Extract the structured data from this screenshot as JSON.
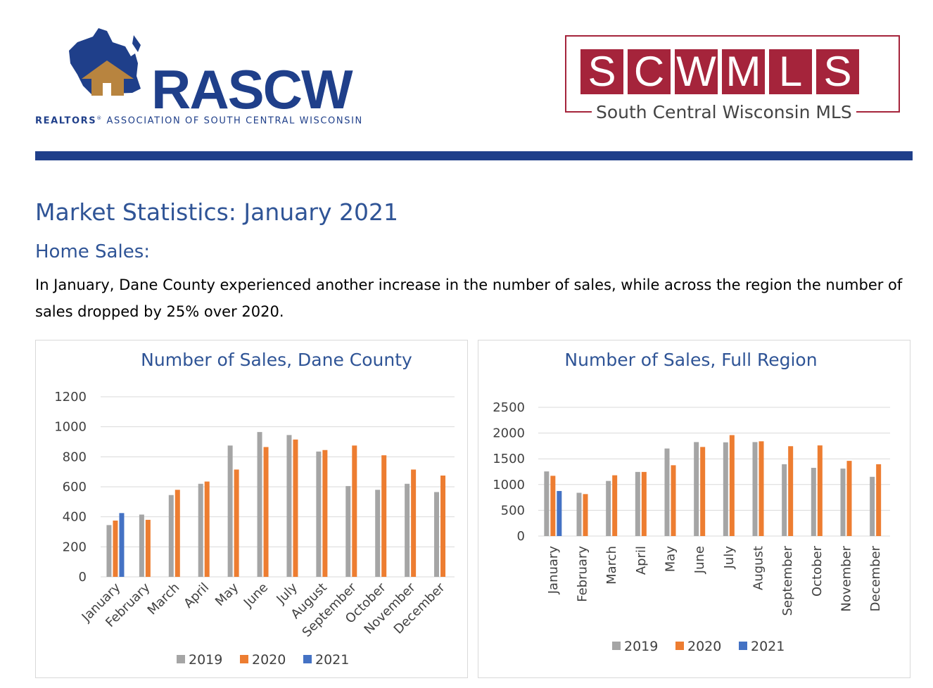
{
  "header": {
    "rascw": {
      "name": "RASCW",
      "subtitle_bold": "REALTORS",
      "subtitle_mark": "®",
      "subtitle_rest": "ASSOCIATION OF SOUTH CENTRAL WISCONSIN",
      "brand_color": "#1f3f8a",
      "roof_color": "#b8843f"
    },
    "scwmls": {
      "letters": [
        "S",
        "C",
        "W",
        "M",
        "L",
        "S"
      ],
      "subtitle": "South Central Wisconsin MLS",
      "brand_color": "#a5243b"
    }
  },
  "page": {
    "title": "Market Statistics: January 2021",
    "section": "Home Sales:",
    "paragraph": "In January, Dane County experienced another increase in the number of sales, while across the region the number of sales dropped by 25% over 2020."
  },
  "colors": {
    "s2019": "#a5a5a5",
    "s2020": "#ed7d31",
    "s2021": "#4472c4",
    "title": "#2f5496",
    "grid": "#d9d9d9"
  },
  "chart_data": [
    {
      "type": "bar",
      "title": "Number of Sales, Dane County",
      "categories": [
        "January",
        "February",
        "March",
        "April",
        "May",
        "June",
        "July",
        "August",
        "September",
        "October",
        "November",
        "December"
      ],
      "ylim": [
        0,
        1200
      ],
      "yticks": [
        0,
        200,
        400,
        600,
        800,
        1000,
        1200
      ],
      "grid": true,
      "legend": "bottom",
      "x_label_rotation": "diagonal",
      "series": [
        {
          "name": "2019",
          "values": [
            345,
            415,
            545,
            620,
            875,
            965,
            945,
            835,
            605,
            580,
            620,
            565
          ]
        },
        {
          "name": "2020",
          "values": [
            375,
            380,
            580,
            635,
            715,
            865,
            915,
            845,
            875,
            810,
            715,
            675
          ]
        },
        {
          "name": "2021",
          "values": [
            425,
            null,
            null,
            null,
            null,
            null,
            null,
            null,
            null,
            null,
            null,
            null
          ]
        }
      ]
    },
    {
      "type": "bar",
      "title": "Number of Sales, Full Region",
      "categories": [
        "January",
        "February",
        "March",
        "April",
        "May",
        "June",
        "July",
        "August",
        "September",
        "October",
        "November",
        "December"
      ],
      "ylim": [
        0,
        2500
      ],
      "yticks": [
        0,
        500,
        1000,
        1500,
        2000,
        2500
      ],
      "grid": true,
      "legend": "bottom",
      "x_label_rotation": "vertical",
      "series": [
        {
          "name": "2019",
          "values": [
            1255,
            840,
            1070,
            1245,
            1700,
            1825,
            1820,
            1825,
            1395,
            1325,
            1310,
            1150
          ]
        },
        {
          "name": "2020",
          "values": [
            1170,
            815,
            1180,
            1245,
            1375,
            1730,
            1960,
            1840,
            1745,
            1760,
            1460,
            1395
          ]
        },
        {
          "name": "2021",
          "values": [
            875,
            null,
            null,
            null,
            null,
            null,
            null,
            null,
            null,
            null,
            null,
            null
          ]
        }
      ]
    }
  ]
}
